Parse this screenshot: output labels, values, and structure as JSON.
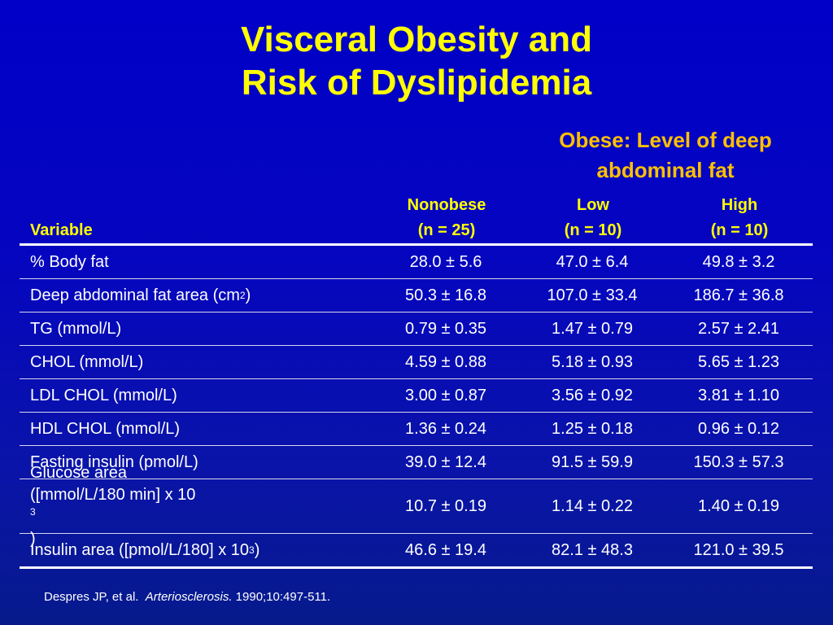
{
  "title": {
    "line1": "Visceral Obesity and",
    "line2": "Risk of Dyslipidemia"
  },
  "group_header": {
    "line1": "Obese: Level of deep",
    "line2": "abdominal fat"
  },
  "columns": {
    "variable": "Variable",
    "nonobese": {
      "label": "Nonobese",
      "n": "(n = 25)"
    },
    "low": {
      "label": "Low",
      "n": "(n = 10)"
    },
    "high": {
      "label": "High",
      "n": "(n = 10)"
    }
  },
  "rows": [
    {
      "variable": "% Body fat",
      "nonobese": "28.0 ± 5.6",
      "low": "47.0 ± 6.4",
      "high": "49.8 ± 3.2"
    },
    {
      "variable": "Deep abdominal fat area (cm",
      "sup": "2",
      "suffix": ")",
      "nonobese": "50.3 ± 16.8",
      "low": "107.0 ± 33.4",
      "high": "186.7 ± 36.8"
    },
    {
      "variable": "TG (mmol/L)",
      "nonobese": "0.79 ± 0.35",
      "low": "1.47 ± 0.79",
      "high": "2.57 ± 2.41"
    },
    {
      "variable": "CHOL (mmol/L)",
      "nonobese": "4.59 ± 0.88",
      "low": "5.18 ± 0.93",
      "high": "5.65 ± 1.23"
    },
    {
      "variable": "LDL CHOL (mmol/L)",
      "nonobese": "3.00 ± 0.87",
      "low": "3.56 ± 0.92",
      "high": "3.81 ± 1.10"
    },
    {
      "variable": "HDL CHOL (mmol/L)",
      "nonobese": "1.36 ± 0.24",
      "low": "1.25 ± 0.18",
      "high": "0.96 ± 0.12"
    },
    {
      "variable": "Fasting insulin (pmol/L)",
      "nonobese": "39.0 ± 12.4",
      "low": "91.5 ± 59.9",
      "high": "150.3 ± 57.3"
    },
    {
      "variable_line1": "Glucose area",
      "variable_line2": "([mmol/L/180 min] x 10",
      "sup": "3",
      "suffix": ")",
      "nonobese": "10.7 ± 0.19",
      "low": "1.14 ± 0.22",
      "high": "1.40 ± 0.19"
    },
    {
      "variable": "Insulin area ([pmol/L/180] x 10",
      "sup": "3",
      "suffix": ")",
      "nonobese": "46.6 ± 19.4",
      "low": "82.1 ± 48.3",
      "high": "121.0 ± 39.5"
    }
  ],
  "citation": {
    "authors": "Despres JP, et al.",
    "journal": "Arteriosclerosis.",
    "details": "1990;10:497-511."
  },
  "colors": {
    "title": "#ffff00",
    "group_header": "#ffc000",
    "column_header": "#ffff00",
    "background": "#0000c8",
    "text": "#ffffff"
  }
}
